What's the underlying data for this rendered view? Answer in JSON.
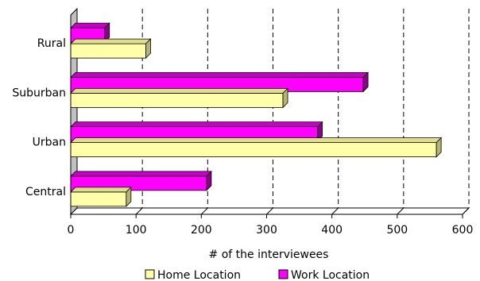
{
  "chart_data": {
    "type": "bar",
    "orientation": "horizontal",
    "style": "3d",
    "categories": [
      "Central",
      "Urban",
      "Suburban",
      "Rural"
    ],
    "series": [
      {
        "name": "Home Location",
        "color": "#FFFFAA",
        "top_color": "#DEDE8E",
        "side_color": "#B5B56E",
        "values": [
          85,
          560,
          325,
          115
        ]
      },
      {
        "name": "Work Location",
        "color": "#FF00FF",
        "top_color": "#C700C7",
        "side_color": "#8B008B",
        "values": [
          208,
          378,
          448,
          52
        ]
      }
    ],
    "xlabel": "# of the interviewees",
    "ylabel": "",
    "xlim": [
      0,
      600
    ],
    "xticks": [
      0,
      100,
      200,
      300,
      400,
      500,
      600
    ],
    "grid": "vertical-dashed",
    "legend_position": "bottom",
    "colors": {
      "wall": "#C0C0C0",
      "grid": "#000000"
    }
  }
}
